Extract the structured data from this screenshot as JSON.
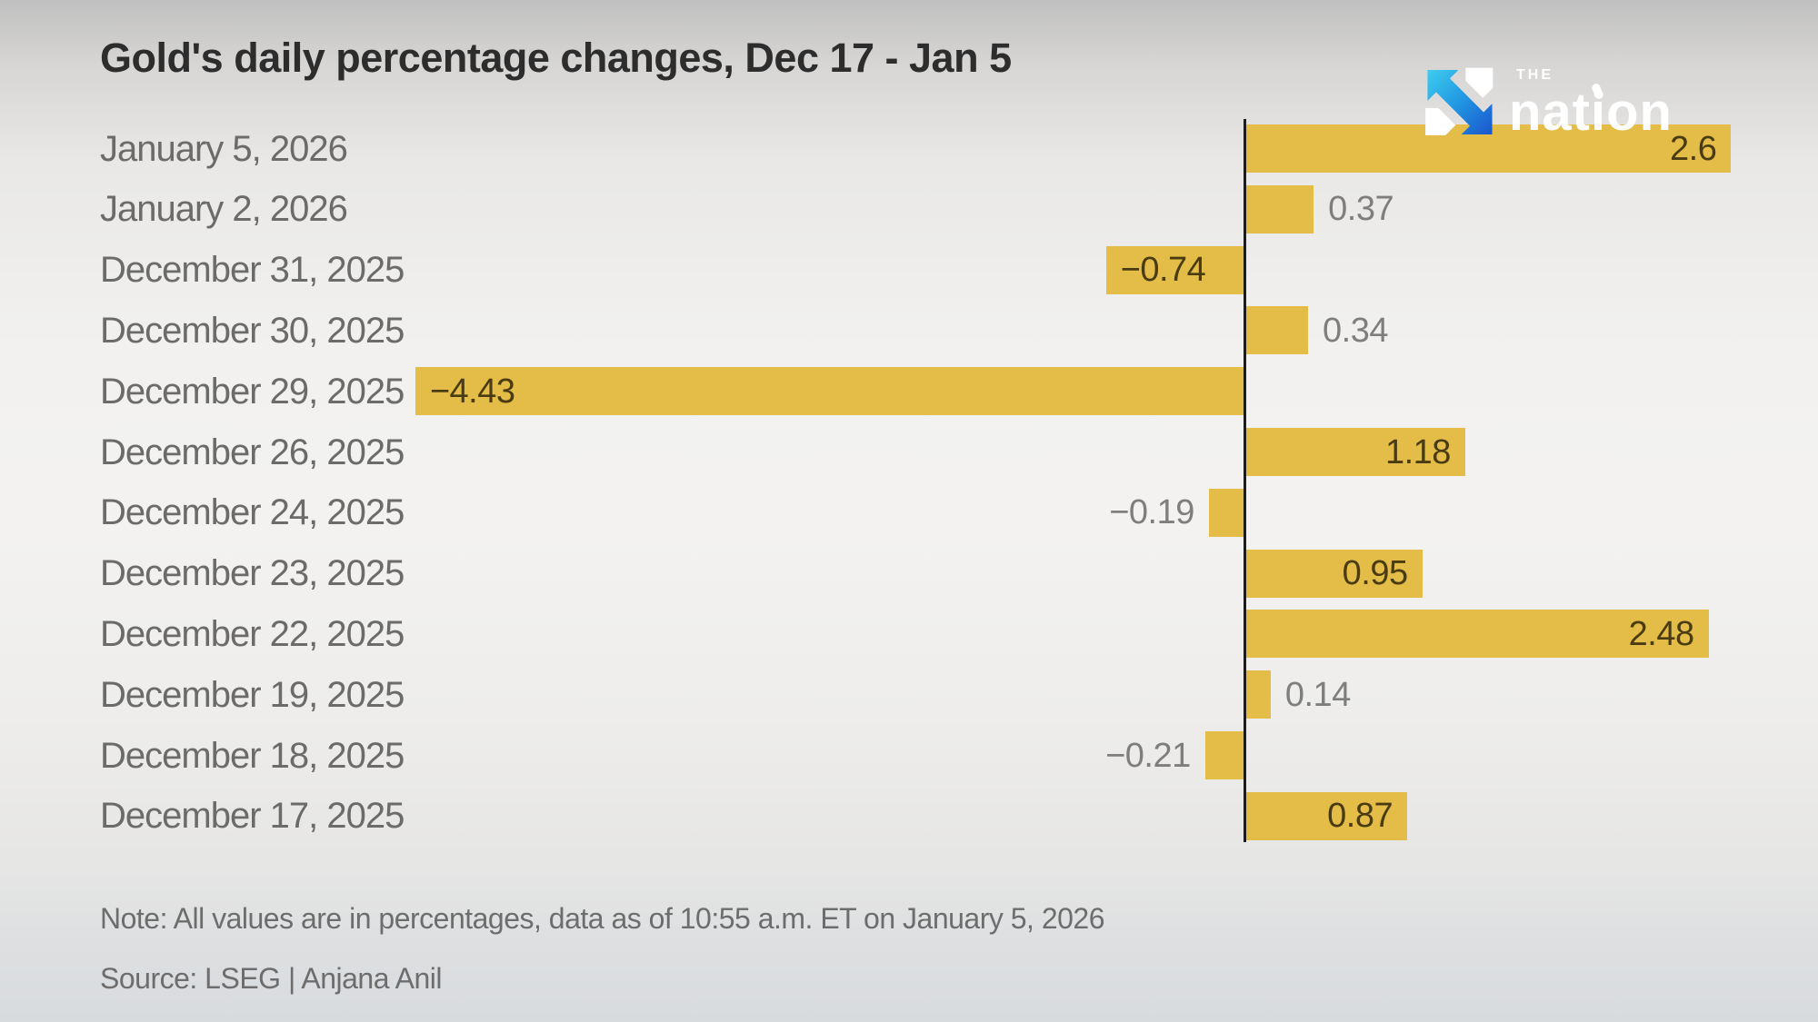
{
  "header": {
    "title": "Gold's daily percentage changes, Dec 17 - Jan 5"
  },
  "logo": {
    "the": "THE",
    "wordmark": "nation",
    "colors": {
      "cyan": "#3ecdee",
      "mid_blue": "#2196e2",
      "deep_blue": "#1a56cc",
      "text": "#ffffff"
    }
  },
  "chart_data": {
    "type": "bar",
    "orientation": "horizontal",
    "title": "Gold's daily percentage changes, Dec 17 - Jan 5",
    "xlabel": "",
    "ylabel": "",
    "xlim": [
      -4.6,
      2.75
    ],
    "grid": false,
    "bar_color": "#e4bc48",
    "axis_color": "#1c1c1c",
    "categories": [
      "January 5, 2026",
      "January 2, 2026",
      "December 31, 2025",
      "December 30, 2025",
      "December 29, 2025",
      "December 26, 2025",
      "December 24, 2025",
      "December 23, 2025",
      "December 22, 2025",
      "December 19, 2025",
      "December 18, 2025",
      "December 17, 2025"
    ],
    "values": [
      2.6,
      0.37,
      -0.74,
      0.34,
      -4.43,
      1.18,
      -0.19,
      0.95,
      2.48,
      0.14,
      -0.21,
      0.87
    ],
    "labels": [
      "2.6",
      "0.37",
      "−0.74",
      "0.34",
      "−4.43",
      "1.18",
      "−0.19",
      "0.95",
      "2.48",
      "0.14",
      "−0.21",
      "0.87"
    ],
    "label_positions": [
      "inside",
      "outside",
      "inside",
      "outside",
      "inside",
      "inside",
      "outside",
      "inside",
      "inside",
      "outside",
      "outside",
      "inside"
    ]
  },
  "footer": {
    "note": "Note: All values are in percentages, data as of 10:55 a.m. ET on January 5, 2026",
    "source": "Source: LSEG | Anjana Anil"
  }
}
